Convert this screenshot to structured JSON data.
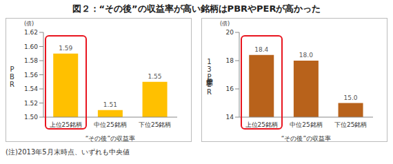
{
  "title": "図２：“その後”の収益率が高い銘柄はPBRやPERが高かった",
  "note": "(注)2013年5月末時点、いずれも中央値",
  "chart_data": [
    {
      "type": "bar",
      "ylabel": "PBR",
      "y_unit": "(倍)",
      "xlabel": "“その後”の収益率",
      "categories": [
        "上位25銘柄",
        "中位25銘柄",
        "下位25銘柄"
      ],
      "values": [
        1.59,
        1.51,
        1.55
      ],
      "color": "#FFC000",
      "ylim": [
        1.5,
        1.62
      ],
      "yticks": [
        {
          "value": 1.5,
          "label": "1.50"
        },
        1.52,
        1.54,
        1.56,
        1.58,
        {
          "value": 1.6,
          "label": "1.60"
        },
        1.62
      ],
      "data_labels": true,
      "grid": false
    },
    {
      "type": "bar",
      "ylabel": "13年度予想PER",
      "y_unit": "(倍)",
      "xlabel": "“その後”の収益率",
      "categories": [
        "上位25銘柄",
        "中位25銘柄",
        "下位25銘柄"
      ],
      "values": [
        18.4,
        18.0,
        15.0
      ],
      "value_labels": [
        "18.4",
        "18.0",
        "15.0"
      ],
      "color": "#B8621B",
      "ylim": [
        14,
        20
      ],
      "yticks": [
        14,
        16,
        18,
        20
      ],
      "data_labels": true,
      "grid": false
    }
  ]
}
